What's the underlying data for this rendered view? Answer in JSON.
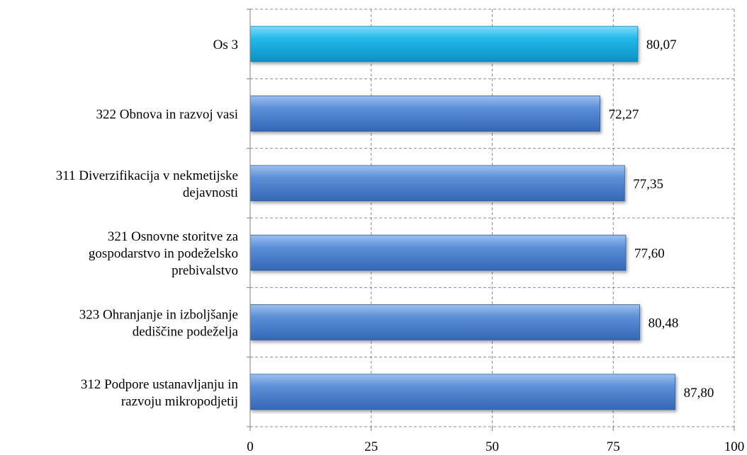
{
  "chart_data": {
    "type": "bar",
    "orientation": "horizontal",
    "categories": [
      "Os 3",
      "322 Obnova in razvoj vasi",
      "311 Diverzifikacija v nekmetijske dejavnosti",
      "321 Osnovne storitve za gospodarstvo in podeželsko prebivalstvo",
      "323 Ohranjanje in izboljšanje dediščine podeželja",
      "312 Podpore ustanavljanju in razvoju mikropodjetij"
    ],
    "category_lines": [
      [
        "Os 3"
      ],
      [
        "322 Obnova in razvoj vasi"
      ],
      [
        "311 Diverzifikacija v nekmetijske",
        "dejavnosti"
      ],
      [
        "321 Osnovne storitve za",
        "gospodarstvo in podeželsko",
        "prebivalstvo"
      ],
      [
        "323 Ohranjanje in izboljšanje",
        "dediščine podeželja"
      ],
      [
        "312 Podpore ustanavljanju in",
        "razvoju mikropodjetij"
      ]
    ],
    "values": [
      80.07,
      72.27,
      77.35,
      77.6,
      80.48,
      87.8
    ],
    "data_labels": [
      "80,07",
      "72,27",
      "77,35",
      "77,60",
      "80,48",
      "87,80"
    ],
    "highlight": [
      true,
      false,
      false,
      false,
      false,
      false
    ],
    "xlim": [
      0,
      100
    ],
    "x_ticks": [
      0,
      25,
      50,
      75,
      100
    ],
    "x_tick_labels": [
      "0",
      "25",
      "50",
      "75",
      "100"
    ],
    "grid": true,
    "colors": {
      "highlight": "#1eb4e6",
      "default": "#4f85d0",
      "grid": "#8c8c8c"
    }
  }
}
